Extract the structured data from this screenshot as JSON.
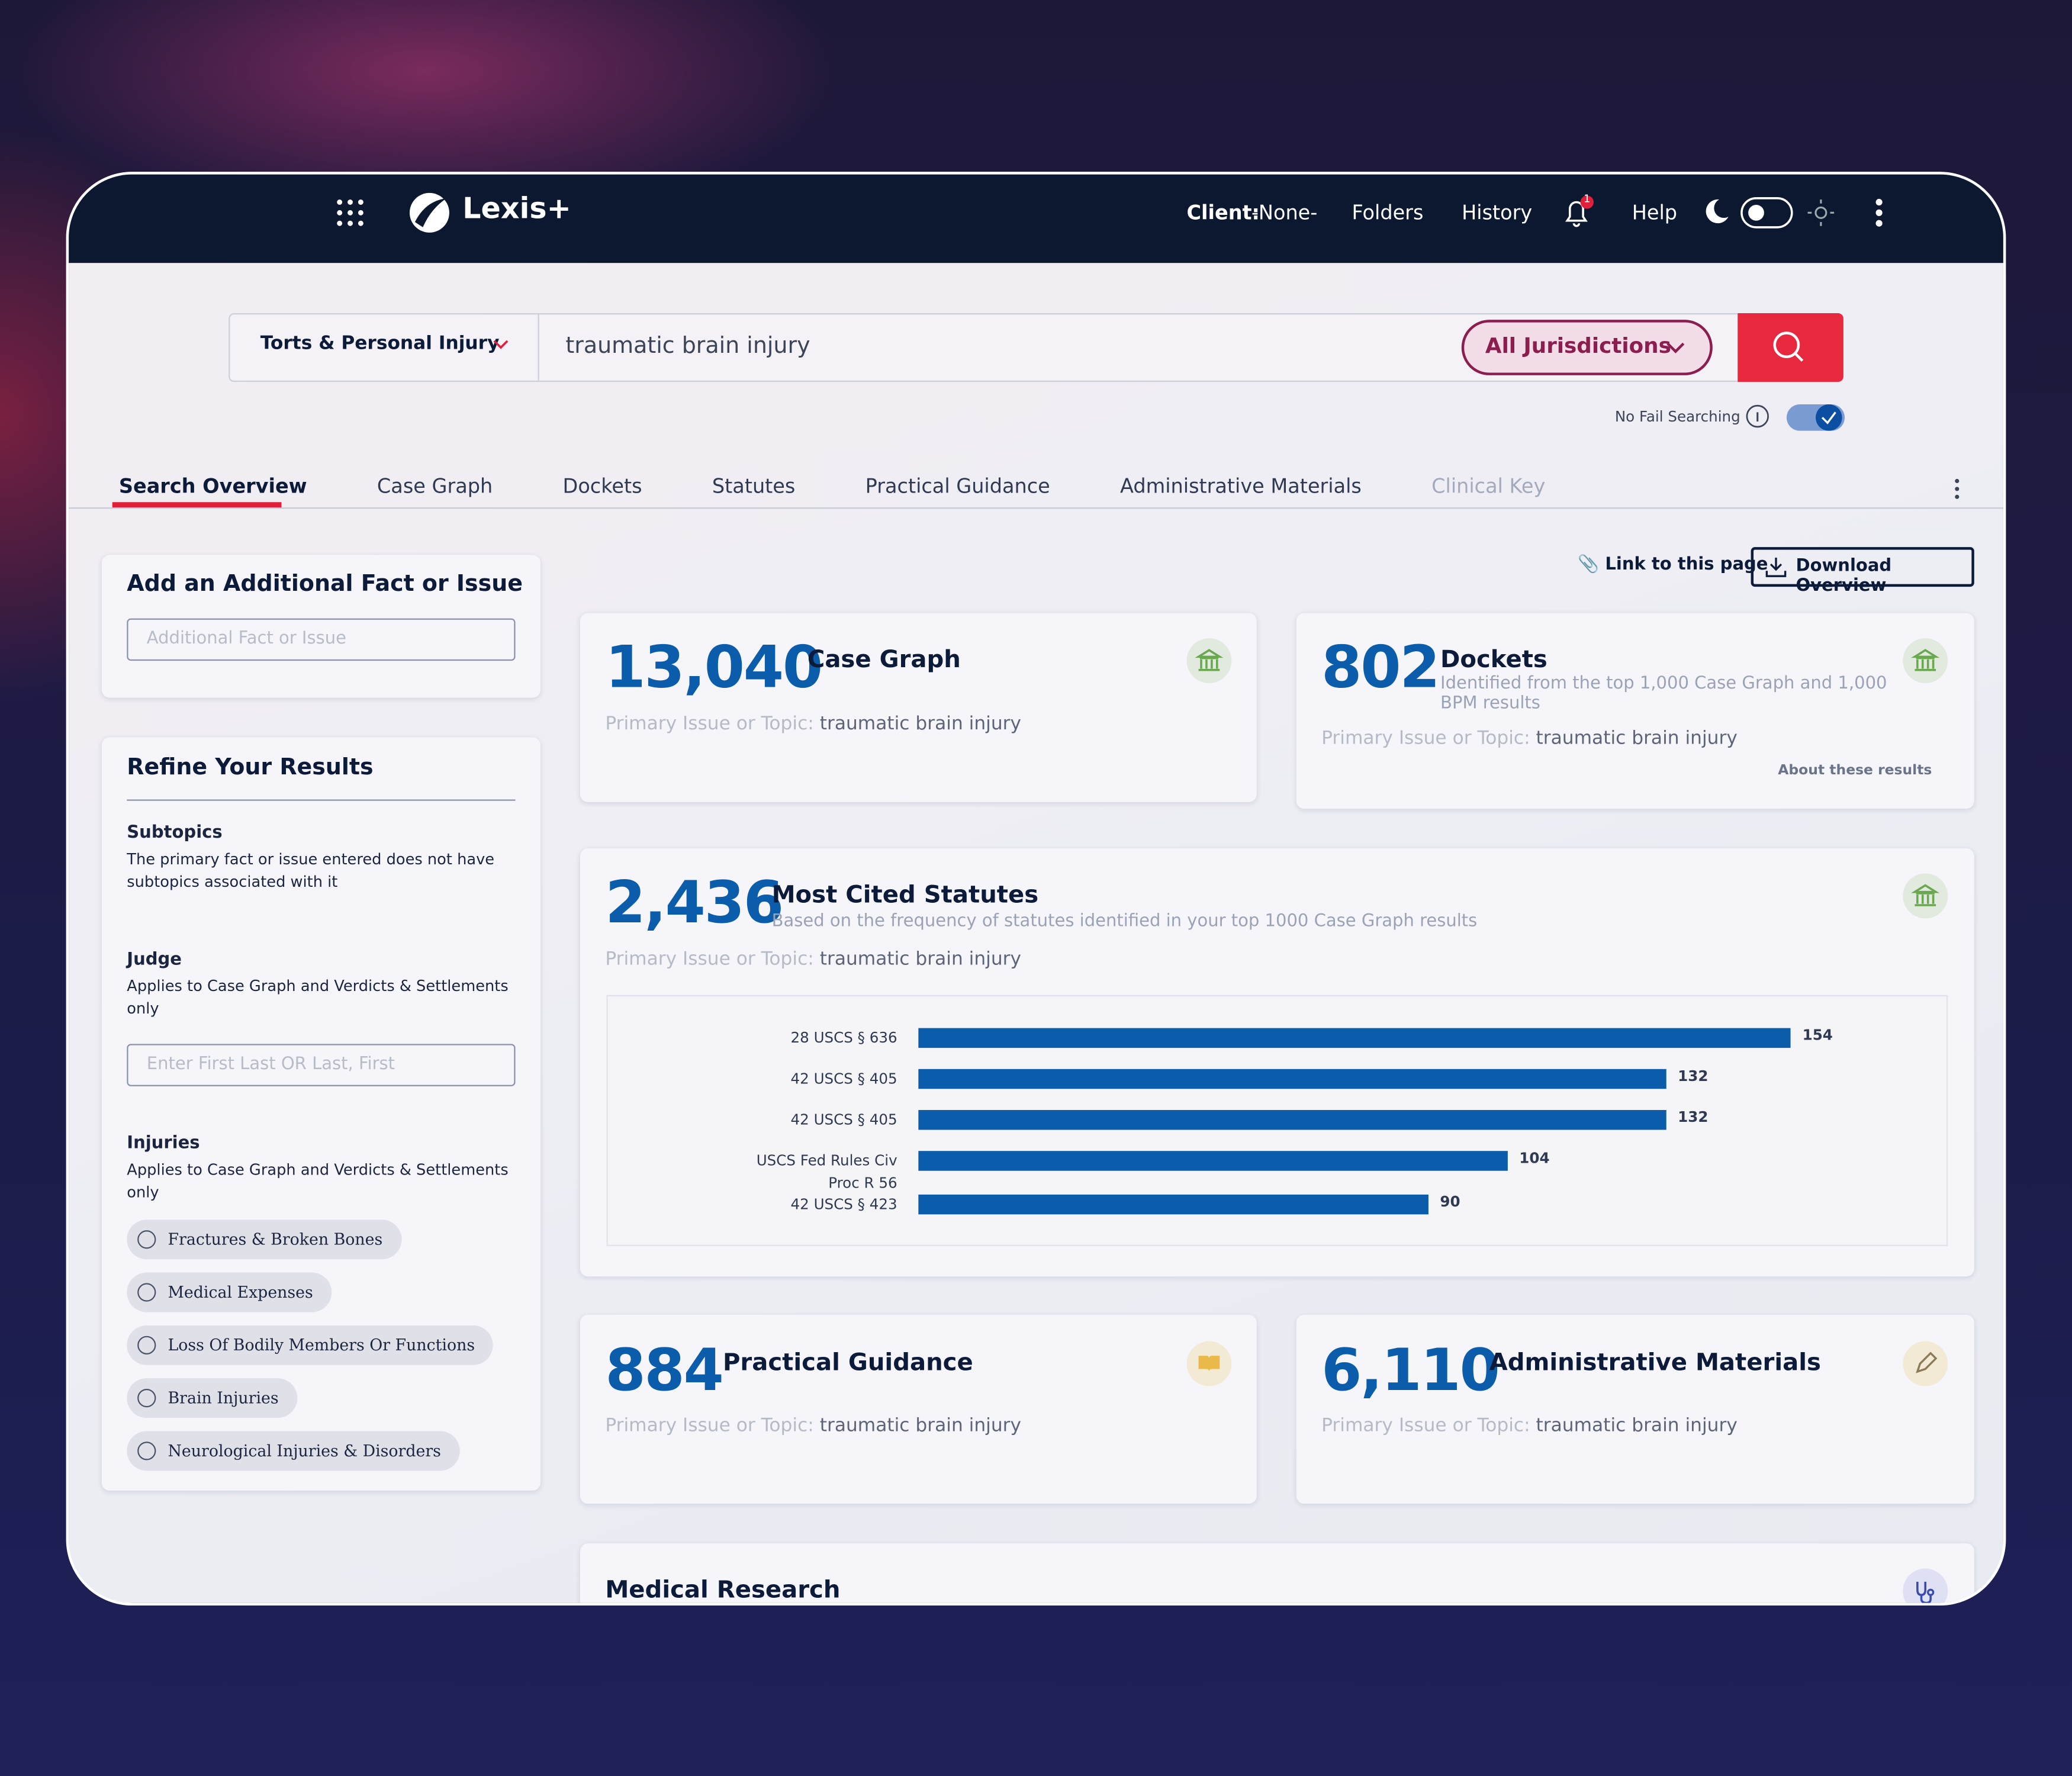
{
  "nav": {
    "brand": "Lexis+",
    "client_label": "Client:",
    "client_value": "-None-",
    "links": [
      "Folders",
      "History"
    ],
    "help": "Help",
    "notification_count": "1"
  },
  "search": {
    "practice_area": "Torts & Personal Injury",
    "query": "traumatic brain injury",
    "jurisdiction": "All Jurisdictions",
    "no_fail": "No Fail Searching"
  },
  "tabs": [
    "Search Overview",
    "Case Graph",
    "Dockets",
    "Statutes",
    "Practical Guidance",
    "Administrative Materials",
    "Clinical Key"
  ],
  "sidebar": {
    "fact_title": "Add an Additional Fact or Issue",
    "fact_placeholder": "Additional Fact or Issue",
    "refine_title": "Refine Your Results",
    "subtopics_title": "Subtopics",
    "subtopics_text": "The primary fact or issue entered does not have subtopics associated with it",
    "judge_title": "Judge",
    "judge_text": "Applies to Case Graph and Verdicts & Settlements only",
    "judge_placeholder": "Enter First Last OR Last, First",
    "injuries_title": "Injuries",
    "injuries_text": "Applies to Case Graph and Verdicts & Settlements only",
    "injuries": [
      "Fractures & Broken Bones",
      "Medical Expenses",
      "Loss Of Bodily Members Or Functions",
      "Brain Injuries",
      "Neurological Injuries & Disorders"
    ]
  },
  "actions": {
    "link": "Link to this page",
    "download": "Download Overview"
  },
  "topic_label": "Primary Issue or Topic:",
  "topic": "traumatic brain injury",
  "cards": {
    "case_graph": {
      "count": "13,040",
      "title": "Case Graph"
    },
    "dockets": {
      "count": "802",
      "title": "Dockets",
      "subtitle": "Identified from the top 1,000 Case Graph and 1,000 BPM results",
      "footnote": "About these results"
    },
    "statutes": {
      "count": "2,436",
      "title": "Most Cited Statutes",
      "subtitle": "Based on the frequency of statutes identified in your top 1000 Case Graph results"
    },
    "guidance": {
      "count": "884",
      "title": "Practical Guidance"
    },
    "admin": {
      "count": "6,110",
      "title": "Administrative Materials"
    },
    "medical": {
      "title": "Medical Research"
    }
  },
  "chart_data": {
    "type": "bar",
    "orientation": "horizontal",
    "categories": [
      "28 USCS § 636",
      "42 USCS § 405",
      "42 USCS § 405",
      "USCS Fed Rules Civ Proc R 56",
      "42 USCS § 423"
    ],
    "values": [
      154,
      132,
      132,
      104,
      90
    ],
    "color": "#0b5cab",
    "xlim": [
      0,
      175
    ]
  }
}
